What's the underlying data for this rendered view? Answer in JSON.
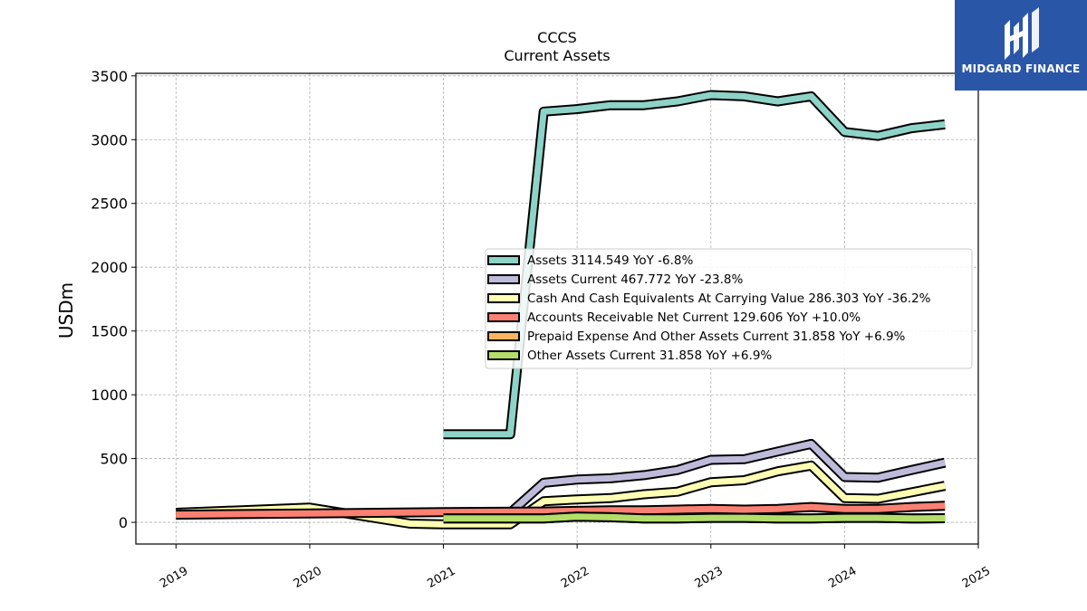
{
  "chart_data": {
    "type": "line",
    "title": "CCCS",
    "subtitle": "Current  Assets",
    "xlabel": "",
    "ylabel": "USDm",
    "xlim": [
      2018.7,
      2025.0
    ],
    "ylim": [
      -170,
      3520
    ],
    "x_ticks": [
      "2019",
      "2020",
      "2021",
      "2022",
      "2023",
      "2024",
      "2025"
    ],
    "y_ticks": [
      "0",
      "500",
      "1000",
      "1500",
      "2000",
      "2500",
      "3000",
      "3500"
    ],
    "grid": true,
    "legend_position": "center-right",
    "series": [
      {
        "name": "Assets",
        "legend_label": "Assets  3114.549 YoY -6.8%",
        "color": "#8dd3c7",
        "x": [
          2021.0,
          2021.5,
          2021.75,
          2022.0,
          2022.25,
          2022.5,
          2022.75,
          2023.0,
          2023.25,
          2023.5,
          2023.75,
          2024.0,
          2024.25,
          2024.5,
          2024.75
        ],
        "y": [
          690,
          690,
          3220,
          3240,
          3270,
          3270,
          3300,
          3350,
          3340,
          3300,
          3340,
          3060,
          3030,
          3090,
          3120
        ]
      },
      {
        "name": "Assets Current",
        "legend_label": "Assets Current  467.772 YoY -23.8%",
        "color": "#bebada",
        "x": [
          2021.5,
          2021.75,
          2022.0,
          2022.25,
          2022.5,
          2022.75,
          2023.0,
          2023.25,
          2023.5,
          2023.75,
          2024.0,
          2024.25,
          2024.5,
          2024.75
        ],
        "y": [
          75,
          310,
          335,
          345,
          370,
          410,
          490,
          495,
          555,
          615,
          355,
          350,
          410,
          468
        ]
      },
      {
        "name": "Cash And Cash Equivalents At Carrying Value",
        "legend_label": "Cash And Cash Equivalents At Carrying Value  286.303 YoY -36.2%",
        "color": "#ffffb3",
        "x": [
          2019.0,
          2020.0,
          2020.75,
          2021.0,
          2021.5,
          2021.75,
          2022.0,
          2022.25,
          2022.5,
          2022.75,
          2023.0,
          2023.25,
          2023.5,
          2023.75,
          2024.0,
          2024.25,
          2024.5,
          2024.75
        ],
        "y": [
          75,
          115,
          -10,
          -15,
          -15,
          165,
          180,
          190,
          220,
          240,
          315,
          330,
          400,
          445,
          190,
          185,
          235,
          286
        ]
      },
      {
        "name": "Accounts Receivable Net Current",
        "legend_label": "Accounts Receivable Net Current  129.606 YoY +10.0%",
        "color": "#fb8072",
        "x": [
          2019.0,
          2020.0,
          2021.0,
          2021.75,
          2022.0,
          2022.25,
          2022.5,
          2022.75,
          2023.0,
          2023.25,
          2023.5,
          2023.75,
          2024.0,
          2024.25,
          2024.5,
          2024.75
        ],
        "y": [
          60,
          70,
          80,
          85,
          90,
          95,
          95,
          100,
          105,
          100,
          105,
          120,
          105,
          105,
          120,
          130
        ]
      },
      {
        "name": "Prepaid Expense And Other Assets Current",
        "legend_label": "Prepaid Expense And Other Assets Current  31.858 YoY +6.9%",
        "color": "#fdb462",
        "x": [
          2021.0,
          2021.75,
          2022.0,
          2022.25,
          2022.5,
          2022.75,
          2023.0,
          2023.25,
          2023.5,
          2023.75,
          2024.0,
          2024.25,
          2024.5,
          2024.75
        ],
        "y": [
          30,
          30,
          45,
          40,
          30,
          30,
          35,
          35,
          30,
          30,
          35,
          35,
          30,
          32
        ]
      },
      {
        "name": "Other Assets Current",
        "legend_label": "Other Assets Current  31.858 YoY +6.9%",
        "color": "#b3de69",
        "x": [
          2021.0,
          2021.75,
          2022.0,
          2022.25,
          2022.5,
          2022.75,
          2023.0,
          2023.25,
          2023.5,
          2023.75,
          2024.0,
          2024.25,
          2024.5,
          2024.75
        ],
        "y": [
          30,
          30,
          45,
          40,
          30,
          30,
          35,
          35,
          30,
          30,
          35,
          35,
          30,
          32
        ]
      }
    ]
  },
  "logo": {
    "text": "MIDGARD FINANCE",
    "bg_color": "#2a56a8"
  }
}
